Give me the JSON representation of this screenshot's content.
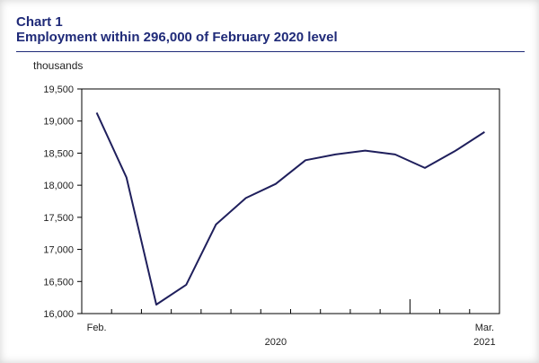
{
  "chart_data": {
    "type": "line",
    "label": "Chart 1",
    "title": "Employment within 296,000 of February 2020 level",
    "ylabel": "thousands",
    "xlabel": "",
    "ylim": [
      16000,
      19500
    ],
    "yticks": [
      16000,
      16500,
      17000,
      17500,
      18000,
      18500,
      19000,
      19500
    ],
    "ytick_labels": [
      "16,000",
      "16,500",
      "17,000",
      "17,500",
      "18,000",
      "18,500",
      "19,000",
      "19,500"
    ],
    "x": [
      "2020-02",
      "2020-03",
      "2020-04",
      "2020-05",
      "2020-06",
      "2020-07",
      "2020-08",
      "2020-09",
      "2020-10",
      "2020-11",
      "2020-12",
      "2021-01",
      "2021-02",
      "2021-03"
    ],
    "x_tick_labels": [
      {
        "index": 0,
        "text": "Feb."
      },
      {
        "index": 13,
        "text": "Mar."
      }
    ],
    "year_labels": [
      {
        "index": 6,
        "text": "2020"
      },
      {
        "index": 13,
        "text": "2021"
      }
    ],
    "series": [
      {
        "values": [
          19130,
          18120,
          16140,
          16450,
          17390,
          17800,
          18020,
          18390,
          18480,
          18540,
          18480,
          18270,
          18530,
          18830
        ]
      }
    ],
    "grid": false,
    "line_color": "#1f1f5c"
  }
}
